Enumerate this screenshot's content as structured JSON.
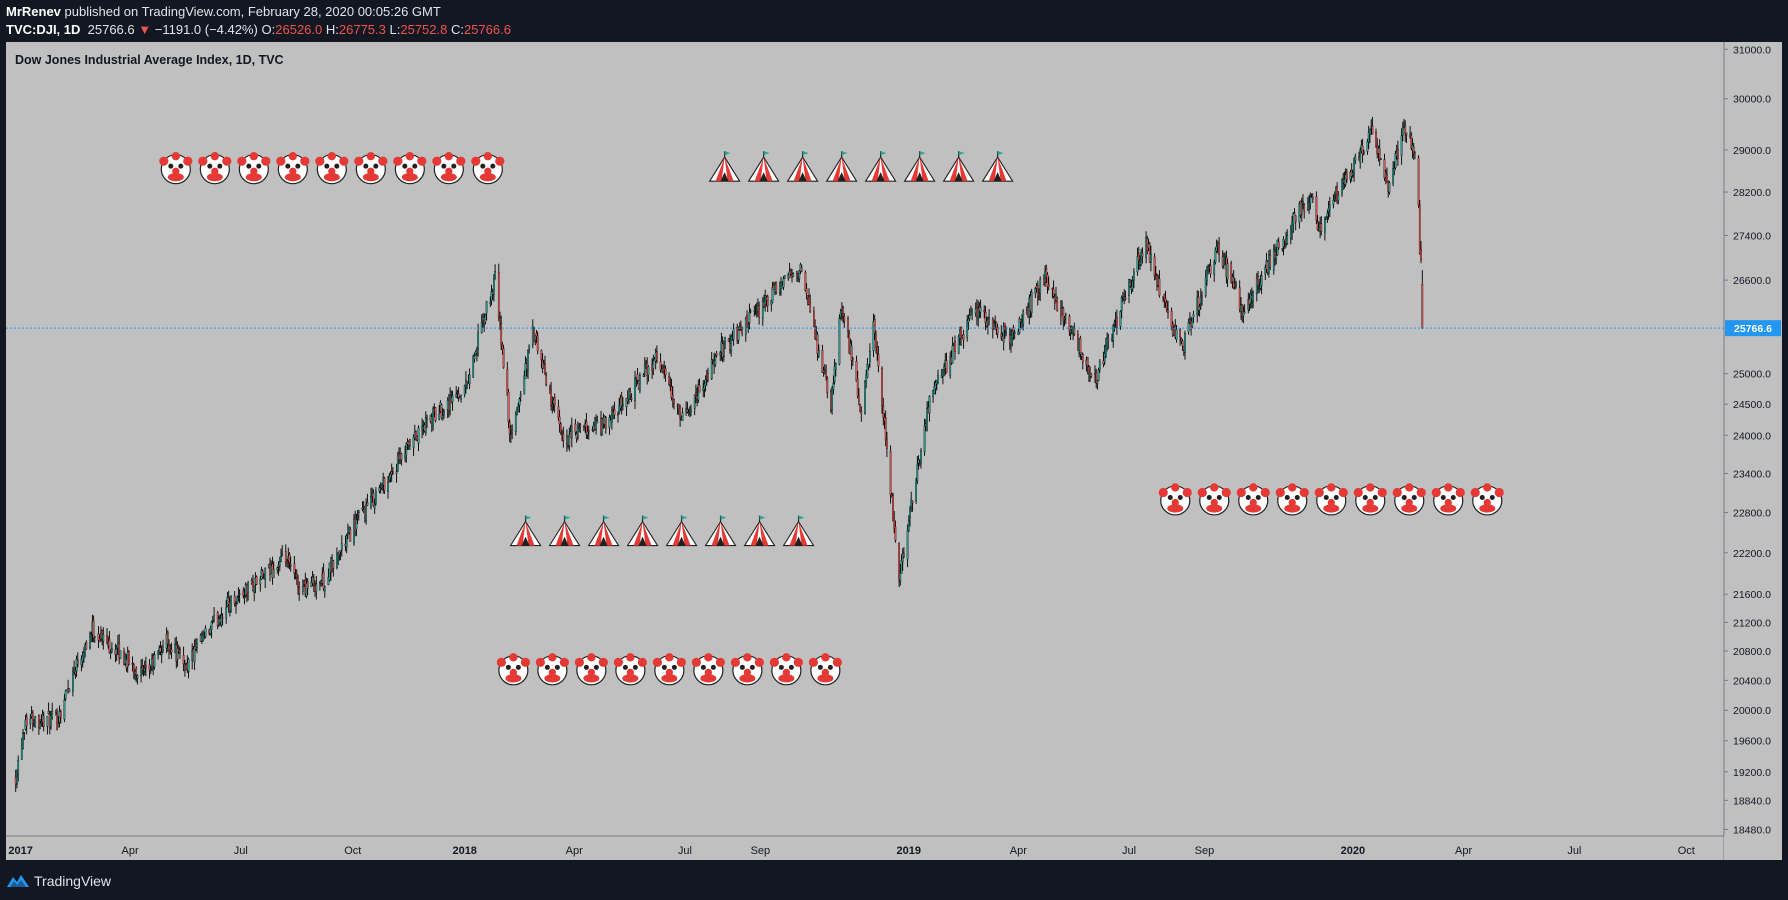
{
  "header": {
    "author": "MrRenev",
    "published_text": " published on TradingView.com, February 28, 2020 00:05:26 GMT",
    "symbol": "TVC:DJI, 1D",
    "last": "25766.6",
    "change": "−1191.0 (−4.42%)",
    "o_label": "O:",
    "o_value": "26526.0",
    "h_label": "H:",
    "h_value": "26775.3",
    "l_label": "L:",
    "l_value": "25752.8",
    "c_label": "C:",
    "c_value": "25766.6"
  },
  "footer": {
    "brand": "TradingView"
  },
  "colors": {
    "background": "#c0c0c0",
    "frame": "#131722",
    "up_candle": "#26a69a",
    "down_candle": "#ef5350",
    "wick": "#000000",
    "price_line": "#2196f3",
    "header_red": "#ef5350"
  },
  "icons": {
    "clown": "clown-face-icon",
    "tent": "circus-tent-icon"
  },
  "chart_data": {
    "type": "candlestick",
    "title": "Dow Jones Industrial Average Index, 1D, TVC",
    "x_tick_labels": [
      "2017",
      "Apr",
      "Jul",
      "Oct",
      "2018",
      "Apr",
      "Jul",
      "Sep",
      "2019",
      "Apr",
      "Jul",
      "Sep",
      "2020",
      "Apr",
      "Jul",
      "Oct"
    ],
    "x_tick_dates": [
      "2017-01-01",
      "2017-04-01",
      "2017-07-01",
      "2017-10-01",
      "2018-01-01",
      "2018-04-01",
      "2018-07-01",
      "2018-09-01",
      "2019-01-01",
      "2019-04-01",
      "2019-07-01",
      "2019-09-01",
      "2020-01-01",
      "2020-04-01",
      "2020-07-01",
      "2020-10-01"
    ],
    "x_range": [
      "2016-12-20",
      "2020-11-01"
    ],
    "y_tick_labels": [
      "31000.0",
      "30000.0",
      "29000.0",
      "28200.0",
      "27400.0",
      "26600.0",
      "25000.0",
      "24500.0",
      "24000.0",
      "23400.0",
      "22800.0",
      "22200.0",
      "21600.0",
      "21200.0",
      "20800.0",
      "20400.0",
      "20000.0",
      "19600.0",
      "19200.0",
      "18840.0",
      "18480.0"
    ],
    "y_range": [
      18400,
      31150
    ],
    "y_scale": "log",
    "last_price_label": "25766.6",
    "last_price": 25766.6,
    "grid": false,
    "price_path": [
      [
        "2016-12-28",
        19150
      ],
      [
        "2017-01-05",
        19900
      ],
      [
        "2017-01-31",
        19860
      ],
      [
        "2017-02-15",
        20600
      ],
      [
        "2017-03-01",
        21100
      ],
      [
        "2017-04-13",
        20450
      ],
      [
        "2017-05-01",
        20950
      ],
      [
        "2017-05-17",
        20600
      ],
      [
        "2017-06-20",
        21450
      ],
      [
        "2017-08-07",
        22100
      ],
      [
        "2017-08-18",
        21700
      ],
      [
        "2017-09-08",
        21800
      ],
      [
        "2017-10-02",
        22600
      ],
      [
        "2017-11-07",
        23550
      ],
      [
        "2017-12-01",
        24200
      ],
      [
        "2018-01-02",
        24800
      ],
      [
        "2018-01-26",
        26600
      ],
      [
        "2018-02-08",
        23900
      ],
      [
        "2018-02-26",
        25700
      ],
      [
        "2018-03-22",
        23950
      ],
      [
        "2018-04-30",
        24200
      ],
      [
        "2018-06-08",
        25300
      ],
      [
        "2018-06-28",
        24200
      ],
      [
        "2018-07-31",
        25400
      ],
      [
        "2018-08-28",
        26000
      ],
      [
        "2018-10-03",
        26850
      ],
      [
        "2018-10-29",
        24450
      ],
      [
        "2018-11-07",
        26200
      ],
      [
        "2018-11-23",
        24300
      ],
      [
        "2018-12-03",
        25800
      ],
      [
        "2018-12-24",
        21800
      ],
      [
        "2019-01-18",
        24600
      ],
      [
        "2019-02-25",
        26100
      ],
      [
        "2019-03-25",
        25550
      ],
      [
        "2019-04-23",
        26650
      ],
      [
        "2019-06-03",
        24900
      ],
      [
        "2019-07-15",
        27300
      ],
      [
        "2019-08-05",
        25700
      ],
      [
        "2019-08-15",
        25500
      ],
      [
        "2019-09-12",
        27200
      ],
      [
        "2019-10-02",
        26100
      ],
      [
        "2019-11-27",
        28150
      ],
      [
        "2019-12-03",
        27500
      ],
      [
        "2020-01-17",
        29350
      ],
      [
        "2020-01-31",
        28250
      ],
      [
        "2020-02-12",
        29550
      ],
      [
        "2020-02-21",
        28950
      ],
      [
        "2020-02-24",
        27950
      ],
      [
        "2020-02-25",
        27080
      ],
      [
        "2020-02-26",
        26960
      ],
      [
        "2020-02-27",
        25766.6
      ]
    ]
  },
  "stickers": [
    {
      "icon": "clown",
      "count": 9,
      "date": "2018-01-20",
      "price": 28650,
      "direction": "left"
    },
    {
      "icon": "tent",
      "count": 8,
      "date": "2019-03-15",
      "price": 28650,
      "direction": "left"
    },
    {
      "icon": "tent",
      "count": 8,
      "date": "2018-02-20",
      "price": 22500,
      "direction": "right"
    },
    {
      "icon": "clown",
      "count": 9,
      "date": "2019-08-08",
      "price": 23000,
      "direction": "right"
    },
    {
      "icon": "clown",
      "count": 9,
      "date": "2018-02-10",
      "price": 20550,
      "direction": "right"
    }
  ]
}
